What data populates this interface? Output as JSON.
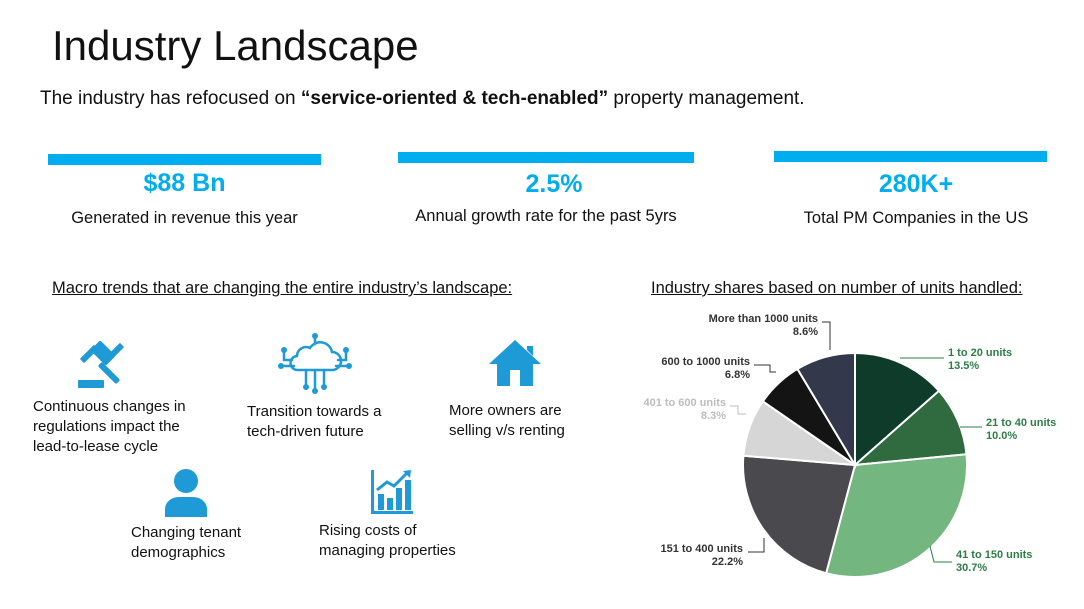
{
  "header": {
    "title": "Industry Landscape",
    "subtitle_pre": "The industry has refocused on ",
    "subtitle_bold": "“service-oriented & tech-enabled”",
    "subtitle_post": " property management."
  },
  "stats": [
    {
      "value": "$88 Bn",
      "description": "Generated in revenue this year"
    },
    {
      "value": "2.5%",
      "description": "Annual growth rate for the past 5yrs"
    },
    {
      "value": "280K+",
      "description": "Total PM Companies in the US"
    }
  ],
  "macro": {
    "heading": "Macro trends that are changing the entire industry’s landscape:",
    "trends": [
      {
        "icon": "gavel-icon",
        "lines": [
          "Continuous changes in",
          "regulations impact the",
          "lead-to-lease cycle"
        ]
      },
      {
        "icon": "cloud-network-icon",
        "lines": [
          "Transition towards a",
          "tech-driven future"
        ]
      },
      {
        "icon": "house-icon",
        "lines": [
          "More owners are",
          "selling v/s renting"
        ]
      },
      {
        "icon": "person-icon",
        "lines": [
          "Changing tenant",
          "demographics"
        ]
      },
      {
        "icon": "rising-chart-icon",
        "lines": [
          "Rising costs of",
          "managing properties"
        ]
      }
    ]
  },
  "pie": {
    "heading": "Industry shares based on number of units handled:"
  },
  "chart_data": {
    "type": "pie",
    "title": "Industry shares based on number of units handled:",
    "slices": [
      {
        "label": "1 to 20 units",
        "value": 13.5,
        "value_text": "13.5%",
        "color": "#0E3B2A"
      },
      {
        "label": "21 to 40 units",
        "value": 10.0,
        "value_text": "10.0%",
        "color": "#2F6B3E"
      },
      {
        "label": "41 to 150 units",
        "value": 30.7,
        "value_text": "30.7%",
        "color": "#74B67F"
      },
      {
        "label": "151 to 400 units",
        "value": 22.2,
        "value_text": "22.2%",
        "color": "#4A4A4E"
      },
      {
        "label": "401 to 600 units",
        "value": 8.3,
        "value_text": "8.3%",
        "color": "#D6D6D6"
      },
      {
        "label": "600 to 1000 units",
        "value": 6.8,
        "value_text": "6.8%",
        "color": "#141414"
      },
      {
        "label": "More than 1000 units",
        "value": 8.6,
        "value_text": "8.6%",
        "color": "#33394A"
      }
    ],
    "label_colors": {
      "green": "#2E7D47",
      "dark": "#333333",
      "light": "#BDBDBD"
    },
    "accent": "#00AEEF"
  }
}
